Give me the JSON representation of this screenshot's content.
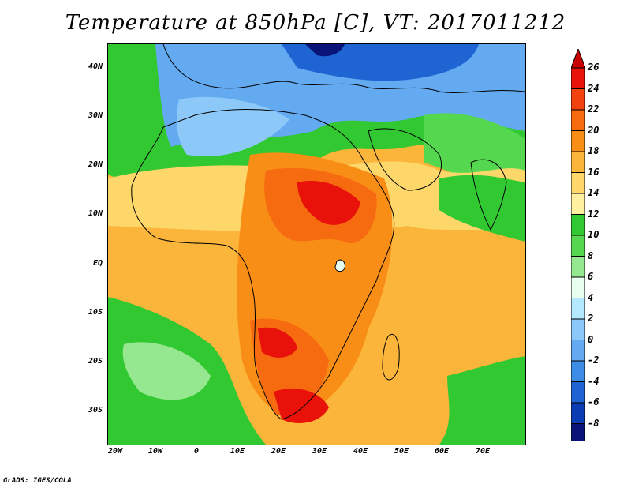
{
  "title": "Temperature at 850hPa [C], VT: 2017011212",
  "credit": "GrADS: IGES/COLA",
  "lat_labels": [
    "40N",
    "30N",
    "20N",
    "10N",
    "EQ",
    "10S",
    "20S",
    "30S"
  ],
  "lon_labels": [
    "20W",
    "10W",
    "0",
    "10E",
    "20E",
    "30E",
    "40E",
    "50E",
    "60E",
    "70E"
  ],
  "colorbar": {
    "labels": [
      "26",
      "24",
      "22",
      "20",
      "18",
      "16",
      "14",
      "12",
      "10",
      "8",
      "6",
      "4",
      "2",
      "0",
      "-2",
      "-4",
      "-6",
      "-8"
    ],
    "colors": [
      "#e8120a",
      "#f2430f",
      "#f66a10",
      "#f98e16",
      "#fbb53a",
      "#fed76a",
      "#fff0a0",
      "#32c832",
      "#55d850",
      "#96e890",
      "#e8fff0",
      "#b4e8fc",
      "#8cc8f8",
      "#64aaf0",
      "#3c8ce6",
      "#1e64d2",
      "#0a3cb4",
      "#0a1478"
    ],
    "over_color": "#c80000",
    "under_color": "#d8c8f8"
  },
  "map": {
    "field": "Temperature at 850hPa",
    "units": "C",
    "valid_time": "2017011212",
    "lat_range": [
      -36,
      45
    ],
    "lon_range": [
      -22,
      80
    ]
  }
}
